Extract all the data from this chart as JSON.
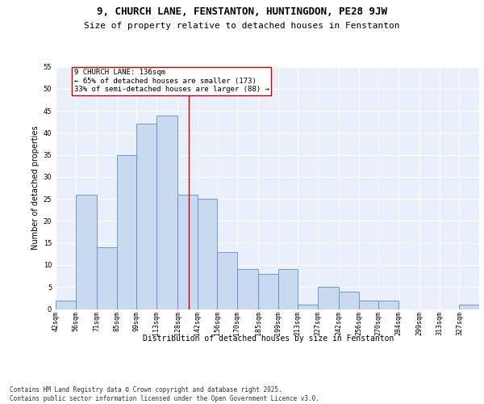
{
  "title1": "9, CHURCH LANE, FENSTANTON, HUNTINGDON, PE28 9JW",
  "title2": "Size of property relative to detached houses in Fenstanton",
  "xlabel": "Distribution of detached houses by size in Fenstanton",
  "ylabel": "Number of detached properties",
  "bin_labels": [
    "42sqm",
    "56sqm",
    "71sqm",
    "85sqm",
    "99sqm",
    "113sqm",
    "128sqm",
    "142sqm",
    "156sqm",
    "170sqm",
    "185sqm",
    "199sqm",
    "213sqm",
    "227sqm",
    "242sqm",
    "256sqm",
    "270sqm",
    "284sqm",
    "299sqm",
    "313sqm",
    "327sqm"
  ],
  "bar_values": [
    2,
    26,
    14,
    35,
    42,
    44,
    26,
    25,
    13,
    9,
    8,
    9,
    1,
    5,
    4,
    2,
    2,
    0,
    0,
    0,
    1
  ],
  "bar_color": "#c9d9f0",
  "bar_edge_color": "#5b8fcf",
  "property_line_x": 136,
  "bin_edges": [
    42,
    56,
    71,
    85,
    99,
    113,
    128,
    142,
    156,
    170,
    185,
    199,
    213,
    227,
    242,
    256,
    270,
    284,
    299,
    313,
    327,
    341
  ],
  "annotation_text": "9 CHURCH LANE: 136sqm\n← 65% of detached houses are smaller (173)\n33% of semi-detached houses are larger (88) →",
  "annotation_box_color": "#ffffff",
  "annotation_box_edge_color": "#cc0000",
  "vline_color": "#cc0000",
  "ylim": [
    0,
    55
  ],
  "yticks": [
    0,
    5,
    10,
    15,
    20,
    25,
    30,
    35,
    40,
    45,
    50,
    55
  ],
  "background_color": "#eaf0fb",
  "footer_line1": "Contains HM Land Registry data © Crown copyright and database right 2025.",
  "footer_line2": "Contains public sector information licensed under the Open Government Licence v3.0.",
  "title_fontsize": 9,
  "subtitle_fontsize": 8,
  "axis_label_fontsize": 7,
  "tick_fontsize": 6,
  "annotation_fontsize": 6.5,
  "footer_fontsize": 5.5
}
